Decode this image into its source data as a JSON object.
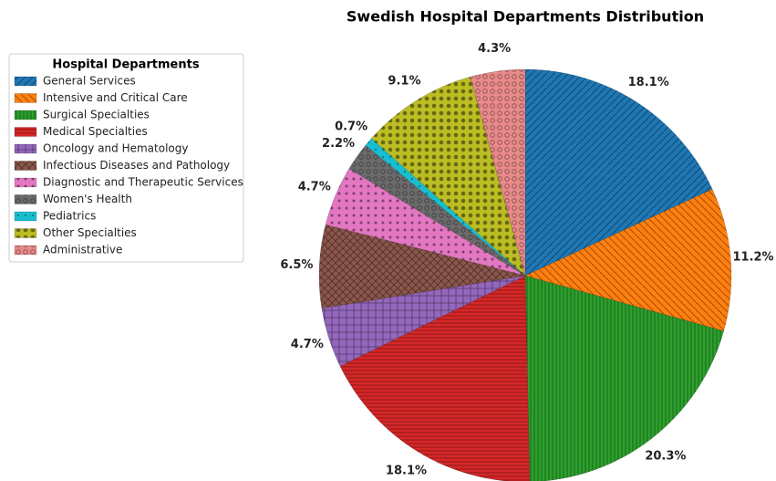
{
  "chart_data": {
    "type": "pie",
    "title": "Swedish Hospital Departments Distribution",
    "legend_title": "Hospital Departments",
    "categories": [
      "General Services",
      "Intensive and Critical Care",
      "Surgical Specialties",
      "Medical Specialties",
      "Oncology and Hematology",
      "Infectious Diseases and Pathology",
      "Diagnostic and Therapeutic Services",
      "Women's Health",
      "Pediatrics",
      "Other Specialties",
      "Administrative"
    ],
    "values": [
      18.1,
      11.2,
      20.3,
      18.1,
      4.7,
      6.5,
      4.7,
      2.2,
      0.7,
      9.1,
      4.3
    ],
    "value_labels": [
      "18.1%",
      "11.2%",
      "20.3%",
      "18.1%",
      "4.7%",
      "6.5%",
      "4.7%",
      "2.2%",
      "0.7%",
      "9.1%",
      "4.3%"
    ],
    "colors": [
      "#1f77b4",
      "#ff7f0e",
      "#2ca02c",
      "#d62728",
      "#9467bd",
      "#8c564b",
      "#e377c2",
      "#6b6b6b",
      "#17becf",
      "#bcbd22",
      "#e98a8a"
    ],
    "legend": "upper left"
  }
}
